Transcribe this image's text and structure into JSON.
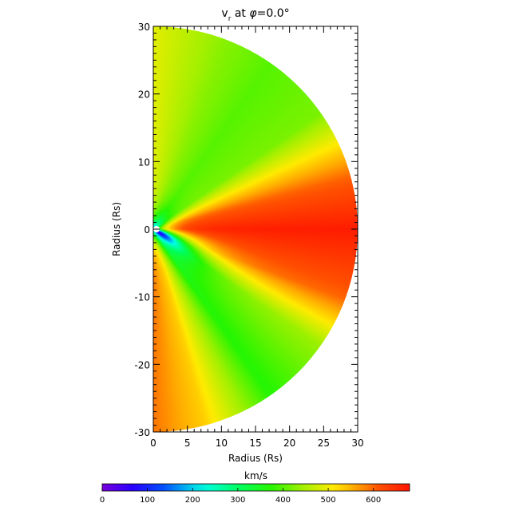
{
  "chart_data": {
    "type": "heatmap",
    "title": "v",
    "title_subscript": "r",
    "title_suffix": " at ",
    "title_phi_symbol": "φ",
    "title_phi_value": "=0.0°",
    "xlabel": "Radius (Rs)",
    "ylabel": "Radius (Rs)",
    "xlim": [
      0,
      30
    ],
    "ylim": [
      -30,
      30
    ],
    "x_ticks": [
      "0",
      "5",
      "10",
      "15",
      "20",
      "25",
      "30"
    ],
    "y_ticks": [
      "-30",
      "-20",
      "-10",
      "0",
      "10",
      "20",
      "30"
    ],
    "domain_shape": "half-disk of radius 30 Rs",
    "inner_boundary_radius": 0.5,
    "colormap": "rainbow (purple-blue-cyan-green-yellow-red)",
    "colorbar": {
      "label": "km/s",
      "range": [
        0,
        680
      ],
      "ticks": [
        "0",
        "100",
        "200",
        "300",
        "400",
        "500",
        "600"
      ],
      "position": "bottom"
    },
    "field_description_by_angle": [
      {
        "theta_deg": 90,
        "speed_km_s": 490
      },
      {
        "theta_deg": 70,
        "speed_km_s": 430
      },
      {
        "theta_deg": 55,
        "speed_km_s": 400
      },
      {
        "theta_deg": 35,
        "speed_km_s": 420
      },
      {
        "theta_deg": 15,
        "speed_km_s": 600
      },
      {
        "theta_deg": 0,
        "speed_km_s": 670
      },
      {
        "theta_deg": -20,
        "speed_km_s": 600
      },
      {
        "theta_deg": -35,
        "speed_km_s": 440
      },
      {
        "theta_deg": -55,
        "speed_km_s": 370
      },
      {
        "theta_deg": -75,
        "speed_km_s": 530
      },
      {
        "theta_deg": -90,
        "speed_km_s": 590
      }
    ],
    "slow_region": {
      "theta_deg": -30,
      "min_speed_km_s": 30,
      "extent_rs": 8
    }
  }
}
